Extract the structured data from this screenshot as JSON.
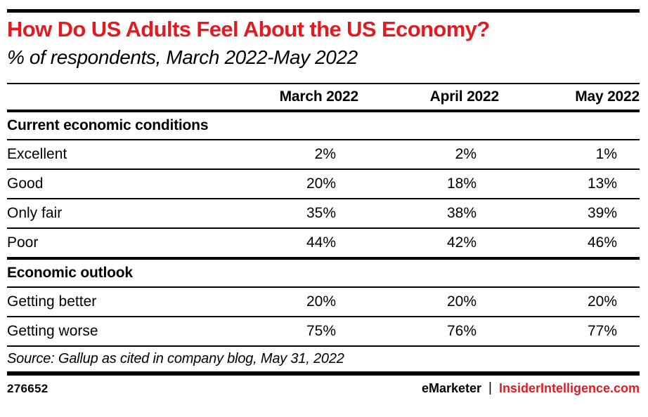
{
  "colors": {
    "accent_red": "#e11b22",
    "text": "#000000",
    "background": "#ffffff"
  },
  "header": {
    "title": "How Do US Adults Feel About the US Economy?",
    "subtitle": "% of respondents, March 2022-May 2022"
  },
  "table": {
    "columns": [
      "March 2022",
      "April 2022",
      "May 2022"
    ],
    "sections": [
      {
        "label": "Current economic conditions",
        "rows": [
          {
            "label": "Excellent",
            "display": [
              "2%",
              "2%",
              "1%"
            ]
          },
          {
            "label": "Good",
            "display": [
              "20%",
              "18%",
              "13%"
            ]
          },
          {
            "label": "Only fair",
            "display": [
              "35%",
              "38%",
              "39%"
            ]
          },
          {
            "label": "Poor",
            "display": [
              "44%",
              "42%",
              "46%"
            ]
          }
        ]
      },
      {
        "label": "Economic outlook",
        "rows": [
          {
            "label": "Getting better",
            "display": [
              "20%",
              "20%",
              "20%"
            ]
          },
          {
            "label": "Getting worse",
            "display": [
              "75%",
              "76%",
              "77%"
            ]
          }
        ]
      }
    ]
  },
  "source": "Source: Gallup as cited in company blog, May 31, 2022",
  "footer": {
    "chart_id": "276652",
    "brand_primary": "eMarketer",
    "separator": "|",
    "brand_secondary": "InsiderIntelligence.com"
  },
  "chart_data": {
    "type": "table",
    "title": "How Do US Adults Feel About the US Economy?",
    "subtitle": "% of respondents, March 2022-May 2022",
    "unit": "% of respondents",
    "columns": [
      "March 2022",
      "April 2022",
      "May 2022"
    ],
    "sections": [
      {
        "name": "Current economic conditions",
        "rows": [
          {
            "label": "Excellent",
            "values": [
              2,
              2,
              1
            ]
          },
          {
            "label": "Good",
            "values": [
              20,
              18,
              13
            ]
          },
          {
            "label": "Only fair",
            "values": [
              35,
              38,
              39
            ]
          },
          {
            "label": "Poor",
            "values": [
              44,
              42,
              46
            ]
          }
        ]
      },
      {
        "name": "Economic outlook",
        "rows": [
          {
            "label": "Getting better",
            "values": [
              20,
              20,
              20
            ]
          },
          {
            "label": "Getting worse",
            "values": [
              75,
              76,
              77
            ]
          }
        ]
      }
    ],
    "source": "Source: Gallup as cited in company blog, May 31, 2022"
  }
}
